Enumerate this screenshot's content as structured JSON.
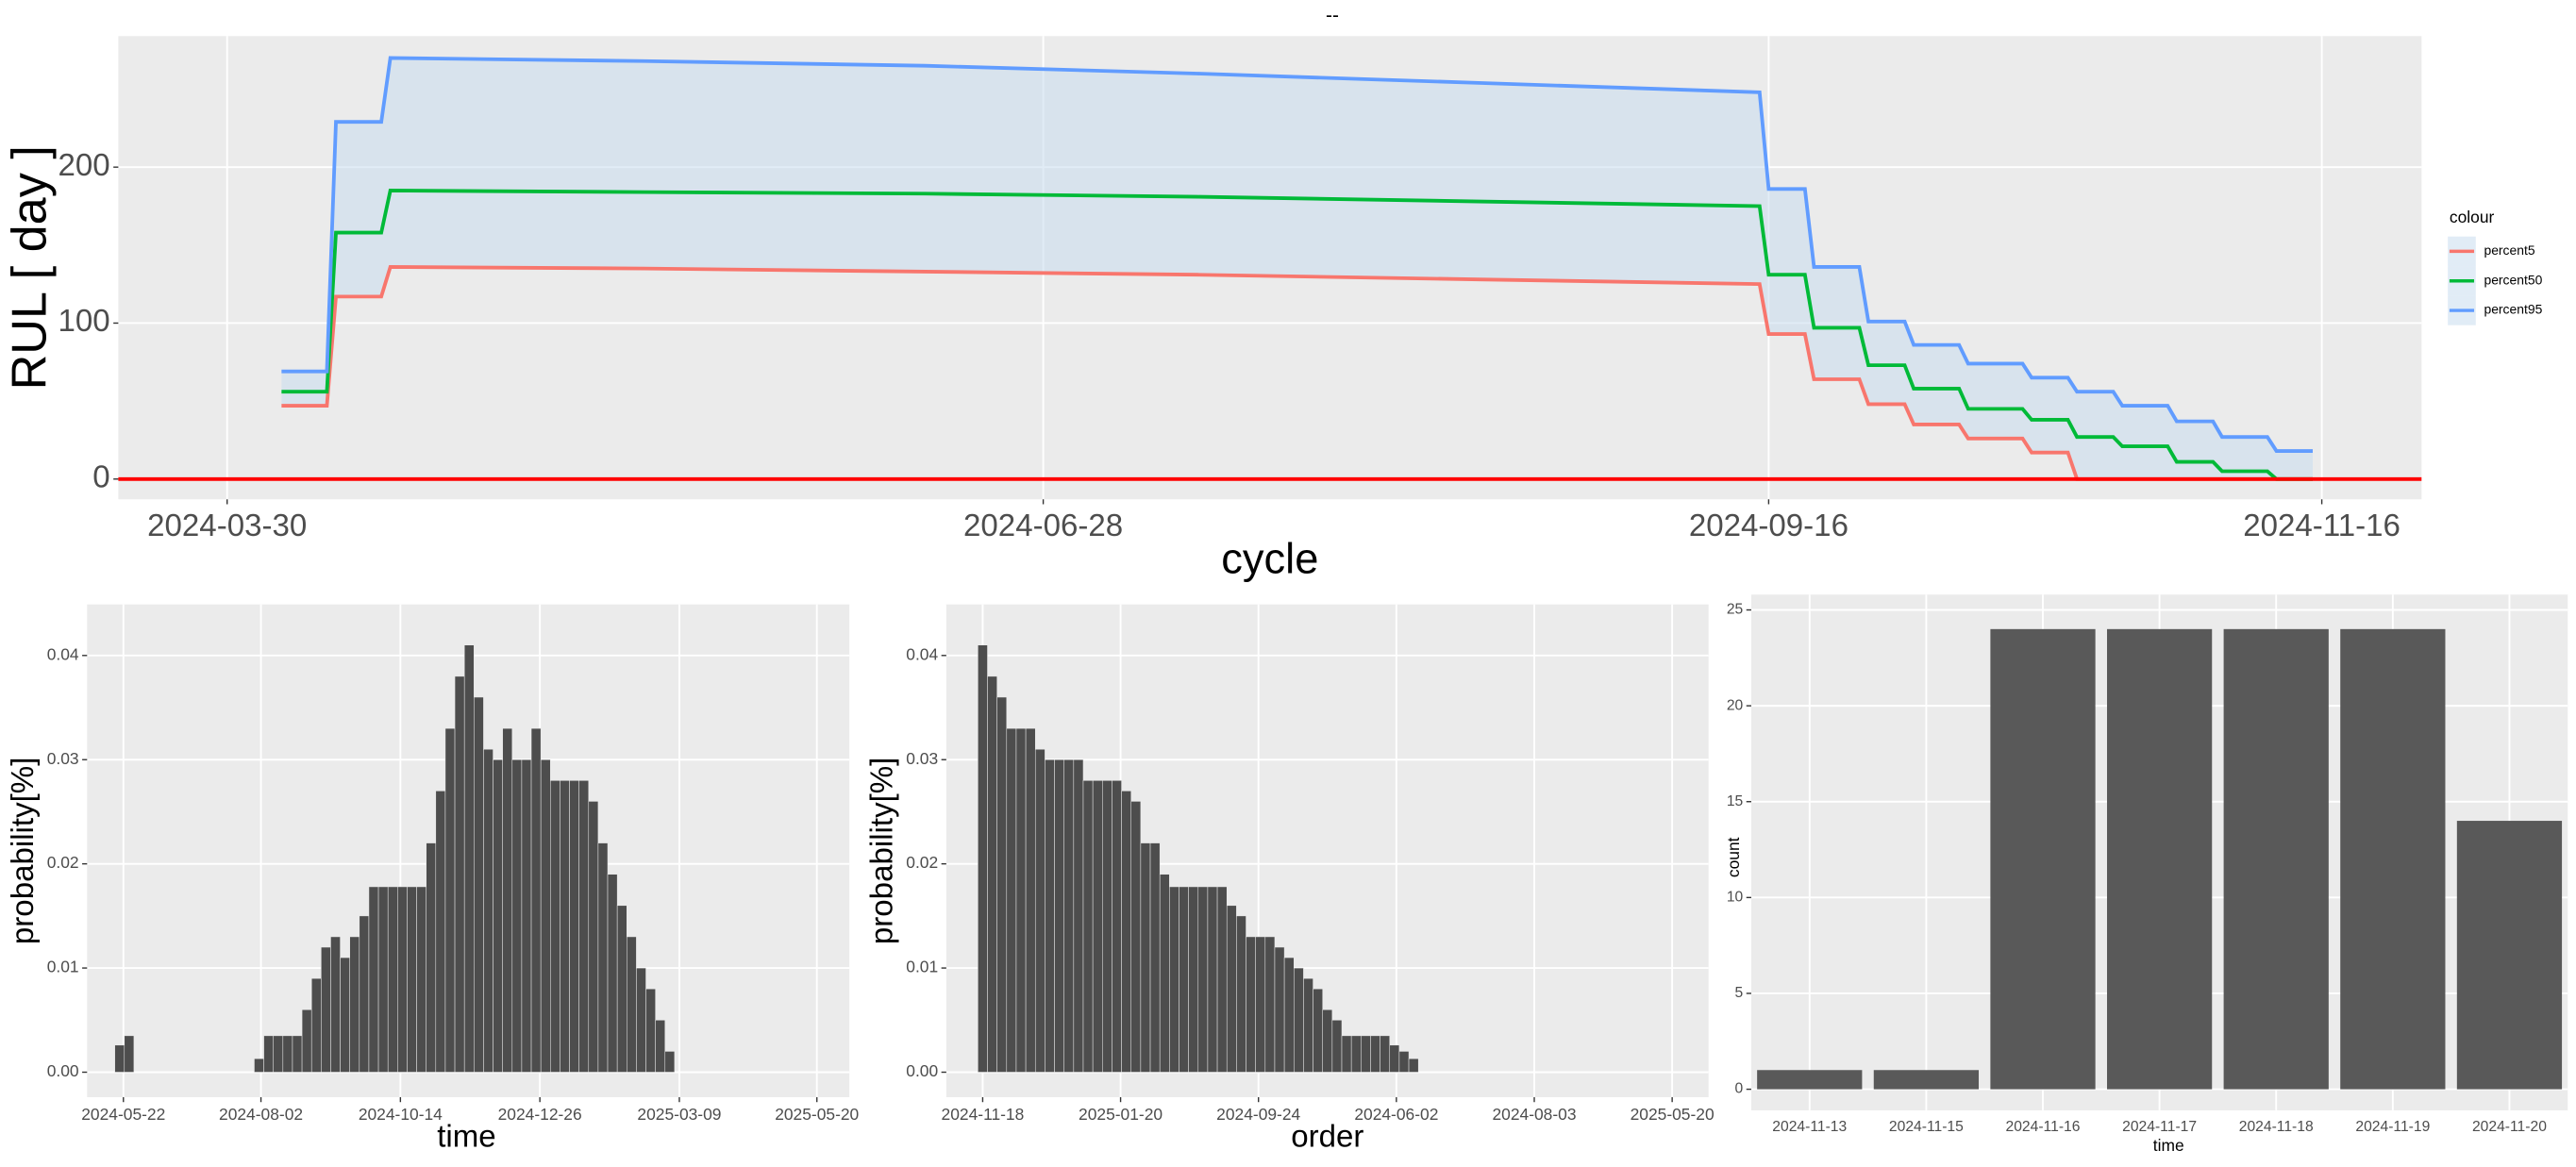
{
  "chart_data": [
    {
      "type": "line",
      "title": "--",
      "x_label": "cycle",
      "y_label": "RUL [ day ]",
      "x": [
        "2024-04-05",
        "2024-04-10",
        "2024-04-11",
        "2024-04-16",
        "2024-04-17",
        "2024-05-15",
        "2024-06-15",
        "2024-07-15",
        "2024-08-15",
        "2024-09-15",
        "2024-09-16",
        "2024-09-20",
        "2024-09-21",
        "2024-09-26",
        "2024-09-27",
        "2024-10-01",
        "2024-10-02",
        "2024-10-07",
        "2024-10-08",
        "2024-10-14",
        "2024-10-15",
        "2024-10-19",
        "2024-10-20",
        "2024-10-24",
        "2024-10-25",
        "2024-10-30",
        "2024-10-31",
        "2024-11-04",
        "2024-11-05",
        "2024-11-10",
        "2024-11-11",
        "2024-11-15"
      ],
      "series": [
        {
          "name": "percent5",
          "color": "#F8766D",
          "values": [
            47,
            47,
            117,
            117,
            136,
            135,
            133,
            131,
            128,
            125,
            93,
            93,
            64,
            64,
            48,
            48,
            35,
            35,
            26,
            26,
            17,
            17,
            0,
            0,
            0,
            0,
            0,
            0,
            0,
            0,
            0,
            0
          ]
        },
        {
          "name": "percent50",
          "color": "#00BA38",
          "values": [
            56,
            56,
            158,
            158,
            185,
            184,
            183,
            181,
            178,
            175,
            131,
            131,
            97,
            97,
            73,
            73,
            58,
            58,
            45,
            45,
            38,
            38,
            27,
            27,
            21,
            21,
            11,
            11,
            5,
            5,
            0,
            0
          ]
        },
        {
          "name": "percent95",
          "color": "#619CFF",
          "values": [
            69,
            69,
            229,
            229,
            270,
            268,
            265,
            260,
            254,
            248,
            186,
            186,
            136,
            136,
            101,
            101,
            86,
            86,
            74,
            74,
            65,
            65,
            56,
            56,
            47,
            47,
            37,
            37,
            27,
            27,
            18,
            18
          ]
        }
      ],
      "ribbon_color": "#c9dcee",
      "hline": {
        "y": 0,
        "color": "#ff0000"
      },
      "xlim": [
        "2024-03-18",
        "2024-11-27"
      ],
      "xticks": [
        "2024-03-30",
        "2024-06-28",
        "2024-09-16",
        "2024-11-16"
      ],
      "ylim": [
        -13,
        284
      ],
      "yticks": [
        0,
        100,
        200
      ],
      "grid": true,
      "legend": {
        "title": "colour",
        "position": "right"
      }
    },
    {
      "type": "bar",
      "x_label": "time",
      "y_label": "probability[%]",
      "color": "#4d4d4d",
      "x": [
        "2024-05-20",
        "2024-05-25",
        "2024-08-01",
        "2024-08-06",
        "2024-08-11",
        "2024-08-16",
        "2024-08-21",
        "2024-08-26",
        "2024-08-31",
        "2024-09-05",
        "2024-09-10",
        "2024-09-15",
        "2024-09-20",
        "2024-09-25",
        "2024-09-30",
        "2024-10-05",
        "2024-10-10",
        "2024-10-15",
        "2024-10-20",
        "2024-10-25",
        "2024-10-30",
        "2024-11-04",
        "2024-11-09",
        "2024-11-14",
        "2024-11-19",
        "2024-11-24",
        "2024-11-29",
        "2024-12-04",
        "2024-12-09",
        "2024-12-14",
        "2024-12-19",
        "2024-12-24",
        "2024-12-29",
        "2025-01-03",
        "2025-01-08",
        "2025-01-13",
        "2025-01-18",
        "2025-01-23",
        "2025-01-28",
        "2025-02-02",
        "2025-02-07",
        "2025-02-12",
        "2025-02-17",
        "2025-02-22",
        "2025-02-27",
        "2025-03-04"
      ],
      "values": [
        0.0026,
        0.0035,
        0.0013,
        0.0035,
        0.0035,
        0.0035,
        0.0035,
        0.006,
        0.009,
        0.012,
        0.013,
        0.011,
        0.013,
        0.015,
        0.0178,
        0.0178,
        0.0178,
        0.0178,
        0.0178,
        0.0178,
        0.022,
        0.027,
        0.033,
        0.038,
        0.041,
        0.036,
        0.031,
        0.03,
        0.033,
        0.03,
        0.03,
        0.033,
        0.03,
        0.028,
        0.028,
        0.028,
        0.028,
        0.026,
        0.022,
        0.019,
        0.016,
        0.013,
        0.01,
        0.008,
        0.005,
        0.002
      ],
      "xlim": [
        "2024-05-03",
        "2025-06-06"
      ],
      "xticks": [
        "2024-05-22",
        "2024-08-02",
        "2024-10-14",
        "2024-12-26",
        "2025-03-09",
        "2025-05-20"
      ],
      "ylim": [
        -0.0024,
        0.0449
      ],
      "yticks": [
        {
          "value": 0,
          "label": "0.00"
        },
        0.01,
        0.02,
        0.03,
        0.04
      ],
      "grid": true
    },
    {
      "type": "bar",
      "x_label": "order",
      "y_label": "probability[%]",
      "color": "#4d4d4d",
      "x": [
        0,
        5,
        10,
        15,
        20,
        25,
        30,
        35,
        40,
        45,
        50,
        55,
        60,
        65,
        70,
        75,
        80,
        85,
        90,
        95,
        100,
        105,
        110,
        115,
        120,
        125,
        130,
        135,
        140,
        145,
        150,
        155,
        160,
        165,
        170,
        175,
        180,
        185,
        190,
        195,
        200,
        205,
        210,
        215,
        220,
        225
      ],
      "values": [
        0.041,
        0.038,
        0.036,
        0.033,
        0.033,
        0.033,
        0.031,
        0.03,
        0.03,
        0.03,
        0.03,
        0.028,
        0.028,
        0.028,
        0.028,
        0.027,
        0.026,
        0.022,
        0.022,
        0.019,
        0.0178,
        0.0178,
        0.0178,
        0.0178,
        0.0178,
        0.0178,
        0.016,
        0.015,
        0.013,
        0.013,
        0.013,
        0.012,
        0.011,
        0.01,
        0.009,
        0.008,
        0.006,
        0.005,
        0.0035,
        0.0035,
        0.0035,
        0.0035,
        0.0035,
        0.0026,
        0.002,
        0.0013
      ],
      "xlim": [
        -19,
        379
      ],
      "xticks": [
        {
          "value": 0,
          "label": "2024-11-18"
        },
        {
          "value": 72,
          "label": "2025-01-20"
        },
        {
          "value": 144,
          "label": "2024-09-24"
        },
        {
          "value": 216,
          "label": "2024-06-02"
        },
        {
          "value": 288,
          "label": "2024-08-03"
        },
        {
          "value": 360,
          "label": "2025-05-20"
        }
      ],
      "ylim": [
        -0.0024,
        0.0449
      ],
      "yticks": [
        {
          "value": 0,
          "label": "0.00"
        },
        0.01,
        0.02,
        0.03,
        0.04
      ],
      "grid": true
    },
    {
      "type": "bar",
      "x_label": "time",
      "y_label": "count",
      "color": "#595959",
      "categories": [
        "2024-11-13",
        "2024-11-15",
        "2024-11-16",
        "2024-11-17",
        "2024-11-18",
        "2024-11-19",
        "2024-11-20"
      ],
      "values": [
        1,
        1,
        24,
        24,
        24,
        24,
        14
      ],
      "ylim": [
        -1.1,
        25.8
      ],
      "yticks": [
        0,
        5,
        10,
        15,
        20,
        25
      ],
      "grid": true
    }
  ]
}
